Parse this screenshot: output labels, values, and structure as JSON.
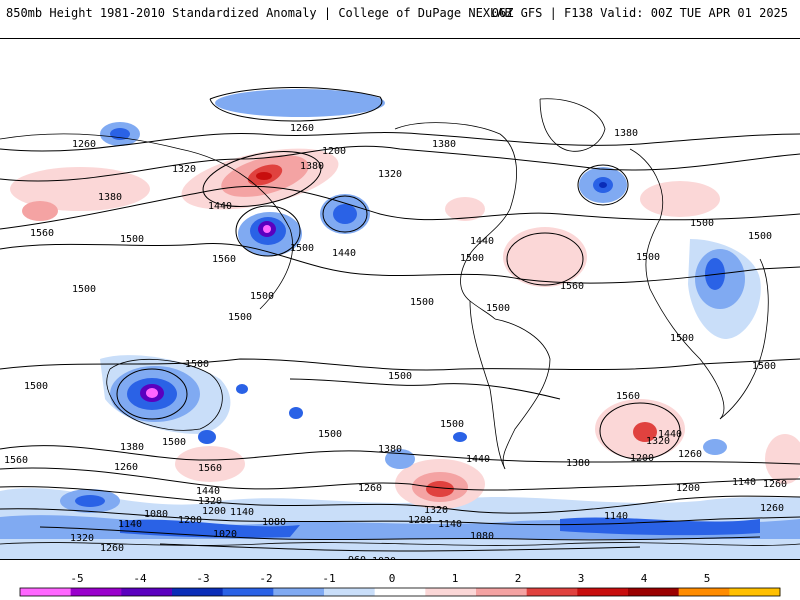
{
  "header": {
    "title": "850mb Height 1981-2010 Standardized Anomaly | College of DuPage NEXLAB",
    "run_info": "06Z GFS | F138 Valid: 00Z TUE APR 01 2025"
  },
  "colorbar": {
    "ticks": [
      "-5",
      "-4",
      "-3",
      "-2",
      "-1",
      "0",
      "1",
      "2",
      "3",
      "4",
      "5"
    ],
    "colors": [
      "#ff66ff",
      "#9900cc",
      "#5a00bf",
      "#0a2db8",
      "#2a62e6",
      "#80aaf2",
      "#c9def9",
      "#ffffff",
      "#fbd7d7",
      "#f4a3a3",
      "#e0423f",
      "#c80e0e",
      "#9a0000",
      "#ff8c00",
      "#ffc000"
    ]
  },
  "contour_labels": [
    {
      "text": "1260"
    },
    {
      "text": "1260"
    },
    {
      "text": "1200"
    },
    {
      "text": "1320"
    },
    {
      "text": "1380"
    },
    {
      "text": "1380"
    },
    {
      "text": "1320"
    },
    {
      "text": "1380"
    },
    {
      "text": "1440"
    },
    {
      "text": "1500"
    },
    {
      "text": "1560"
    },
    {
      "text": "1440"
    },
    {
      "text": "1500"
    },
    {
      "text": "1500"
    },
    {
      "text": "1440"
    },
    {
      "text": "1500"
    },
    {
      "text": "1500"
    },
    {
      "text": "1560"
    },
    {
      "text": "1500"
    },
    {
      "text": "1560"
    },
    {
      "text": "1500"
    },
    {
      "text": "1500"
    },
    {
      "text": "1500"
    },
    {
      "text": "1500"
    },
    {
      "text": "1500"
    },
    {
      "text": "1500"
    },
    {
      "text": "1500"
    },
    {
      "text": "1500"
    },
    {
      "text": "1500"
    },
    {
      "text": "1500"
    },
    {
      "text": "1500"
    },
    {
      "text": "1500"
    },
    {
      "text": "1560"
    },
    {
      "text": "1560"
    },
    {
      "text": "1500"
    },
    {
      "text": "1560"
    },
    {
      "text": "1380"
    },
    {
      "text": "1380"
    },
    {
      "text": "1380"
    },
    {
      "text": "1440"
    },
    {
      "text": "1260"
    },
    {
      "text": "1320"
    },
    {
      "text": "1440"
    },
    {
      "text": "1320"
    },
    {
      "text": "1200"
    },
    {
      "text": "1140"
    },
    {
      "text": "1080"
    },
    {
      "text": "1200"
    },
    {
      "text": "1020"
    },
    {
      "text": "1080"
    },
    {
      "text": "1140"
    },
    {
      "text": "1320"
    },
    {
      "text": "1260"
    },
    {
      "text": "1200"
    },
    {
      "text": "1140"
    },
    {
      "text": "1080"
    },
    {
      "text": "1260"
    },
    {
      "text": "1140"
    },
    {
      "text": "1080"
    },
    {
      "text": "960"
    },
    {
      "text": "1020"
    },
    {
      "text": "1260"
    },
    {
      "text": "1260"
    },
    {
      "text": "1200"
    },
    {
      "text": "1320"
    },
    {
      "text": "1440"
    },
    {
      "text": "1260"
    },
    {
      "text": "1200"
    },
    {
      "text": "1140"
    },
    {
      "text": "1260"
    },
    {
      "text": "1200"
    },
    {
      "text": "1140"
    },
    {
      "text": "1380"
    },
    {
      "text": "1260"
    }
  ]
}
